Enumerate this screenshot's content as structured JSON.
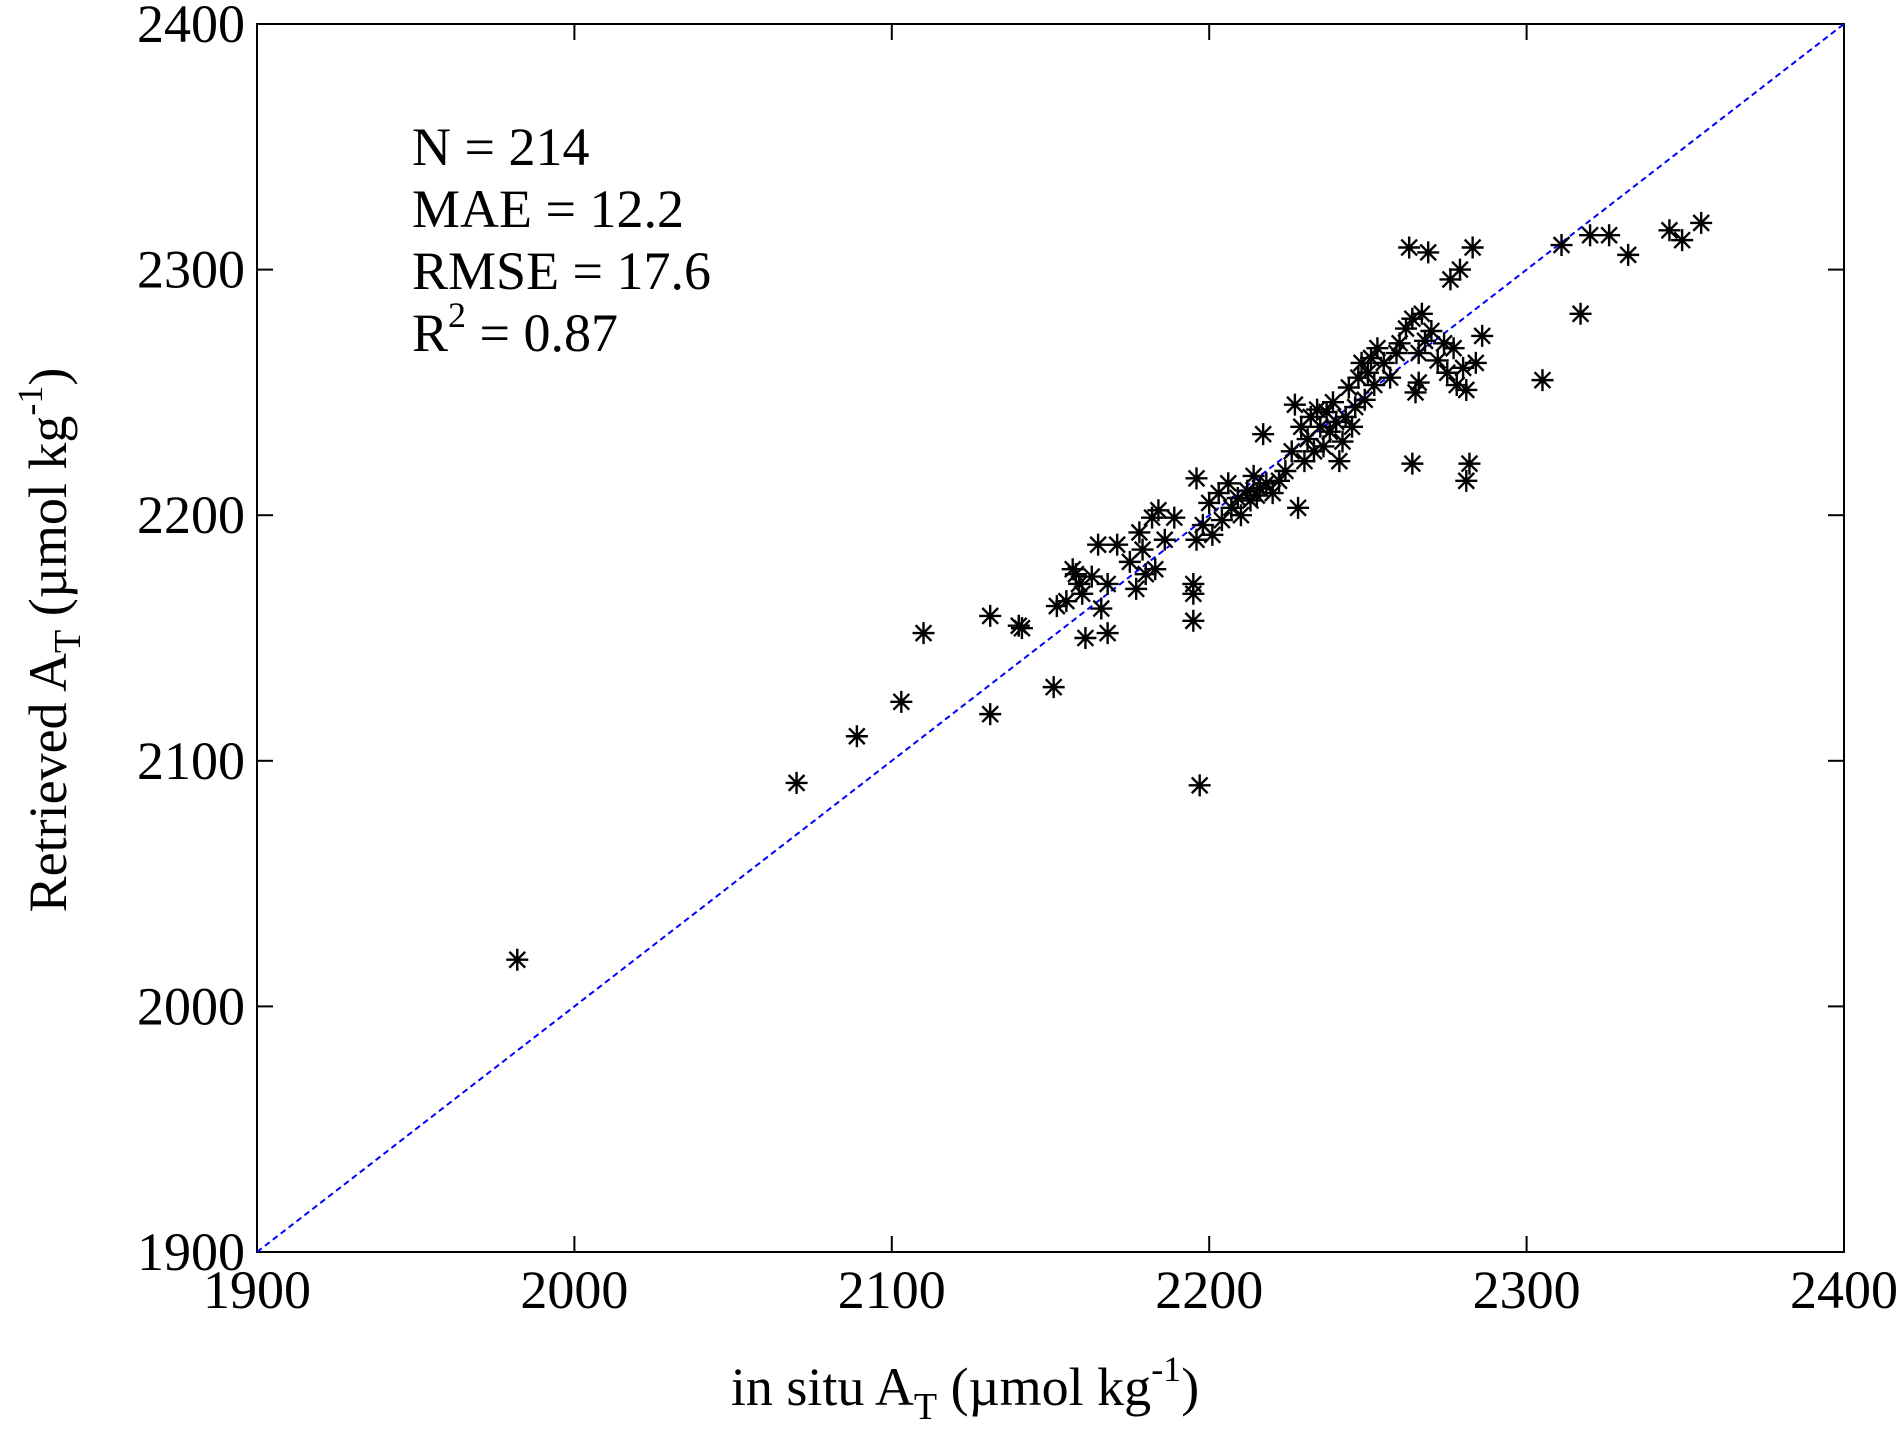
{
  "chart_data": {
    "type": "scatter",
    "title": "",
    "xlabel": {
      "main": "in situ A",
      "sub": "T",
      "unit_pre": " (µmol kg",
      "unit_sup": "-1",
      "unit_post": ")"
    },
    "ylabel": {
      "main": "Retrieved A",
      "sub": "T",
      "unit_pre": " (µmol kg",
      "unit_sup": "-1",
      "unit_post": ")"
    },
    "xlim": [
      1900,
      2400
    ],
    "ylim": [
      1900,
      2400
    ],
    "xticks": [
      1900,
      2000,
      2100,
      2200,
      2300,
      2400
    ],
    "yticks": [
      1900,
      2000,
      2100,
      2200,
      2300,
      2400
    ],
    "grid": false,
    "marker": "asterisk",
    "marker_color": "#000000",
    "reference_line": {
      "type": "1:1",
      "style": "dashed",
      "color": "#0000ff",
      "from": [
        1900,
        1900
      ],
      "to": [
        2400,
        2400
      ]
    },
    "stats": {
      "n_line": "N = 214",
      "mae_line": "MAE = 12.2",
      "rmse_line": "RMSE = 17.6",
      "r2_prefix": "R",
      "r2_sup": "2",
      "r2_suffix": " = 0.87"
    },
    "points": [
      [
        1982,
        2019
      ],
      [
        2070,
        2091
      ],
      [
        2089,
        2110
      ],
      [
        2103,
        2124
      ],
      [
        2110,
        2152
      ],
      [
        2131,
        2119
      ],
      [
        2131,
        2159
      ],
      [
        2140,
        2155
      ],
      [
        2141,
        2154
      ],
      [
        2151,
        2130
      ],
      [
        2152,
        2163
      ],
      [
        2155,
        2165
      ],
      [
        2157,
        2178
      ],
      [
        2158,
        2176
      ],
      [
        2159,
        2172
      ],
      [
        2160,
        2168
      ],
      [
        2161,
        2150
      ],
      [
        2163,
        2175
      ],
      [
        2165,
        2188
      ],
      [
        2166,
        2162
      ],
      [
        2168,
        2152
      ],
      [
        2168,
        2172
      ],
      [
        2171,
        2188
      ],
      [
        2175,
        2181
      ],
      [
        2177,
        2170
      ],
      [
        2178,
        2193
      ],
      [
        2179,
        2186
      ],
      [
        2180,
        2176
      ],
      [
        2182,
        2199
      ],
      [
        2183,
        2178
      ],
      [
        2184,
        2202
      ],
      [
        2186,
        2190
      ],
      [
        2189,
        2199
      ],
      [
        2195,
        2157
      ],
      [
        2195,
        2172
      ],
      [
        2195,
        2168
      ],
      [
        2196,
        2215
      ],
      [
        2196,
        2190
      ],
      [
        2197,
        2090
      ],
      [
        2198,
        2196
      ],
      [
        2200,
        2205
      ],
      [
        2201,
        2192
      ],
      [
        2203,
        2209
      ],
      [
        2204,
        2198
      ],
      [
        2206,
        2213
      ],
      [
        2207,
        2203
      ],
      [
        2209,
        2207
      ],
      [
        2210,
        2200
      ],
      [
        2212,
        2210
      ],
      [
        2213,
        2206
      ],
      [
        2214,
        2216
      ],
      [
        2215,
        2208
      ],
      [
        2216,
        2211
      ],
      [
        2217,
        2233
      ],
      [
        2218,
        2213
      ],
      [
        2220,
        2209
      ],
      [
        2222,
        2214
      ],
      [
        2224,
        2218
      ],
      [
        2226,
        2226
      ],
      [
        2227,
        2245
      ],
      [
        2228,
        2203
      ],
      [
        2229,
        2236
      ],
      [
        2230,
        2222
      ],
      [
        2231,
        2231
      ],
      [
        2232,
        2240
      ],
      [
        2233,
        2226
      ],
      [
        2234,
        2243
      ],
      [
        2235,
        2236
      ],
      [
        2236,
        2228
      ],
      [
        2237,
        2242
      ],
      [
        2238,
        2234
      ],
      [
        2239,
        2246
      ],
      [
        2240,
        2238
      ],
      [
        2241,
        2222
      ],
      [
        2242,
        2230
      ],
      [
        2243,
        2240
      ],
      [
        2244,
        2252
      ],
      [
        2245,
        2236
      ],
      [
        2246,
        2244
      ],
      [
        2247,
        2256
      ],
      [
        2248,
        2262
      ],
      [
        2249,
        2247
      ],
      [
        2250,
        2258
      ],
      [
        2251,
        2264
      ],
      [
        2252,
        2253
      ],
      [
        2253,
        2268
      ],
      [
        2255,
        2262
      ],
      [
        2257,
        2256
      ],
      [
        2259,
        2266
      ],
      [
        2260,
        2270
      ],
      [
        2262,
        2276
      ],
      [
        2263,
        2309
      ],
      [
        2264,
        2280
      ],
      [
        2264,
        2221
      ],
      [
        2265,
        2250
      ],
      [
        2266,
        2266
      ],
      [
        2266,
        2254
      ],
      [
        2267,
        2282
      ],
      [
        2268,
        2271
      ],
      [
        2269,
        2307
      ],
      [
        2270,
        2275
      ],
      [
        2272,
        2263
      ],
      [
        2274,
        2270
      ],
      [
        2275,
        2258
      ],
      [
        2276,
        2296
      ],
      [
        2277,
        2268
      ],
      [
        2278,
        2253
      ],
      [
        2279,
        2300
      ],
      [
        2280,
        2260
      ],
      [
        2281,
        2251
      ],
      [
        2281,
        2214
      ],
      [
        2282,
        2221
      ],
      [
        2283,
        2309
      ],
      [
        2284,
        2262
      ],
      [
        2286,
        2273
      ],
      [
        2305,
        2255
      ],
      [
        2311,
        2310
      ],
      [
        2317,
        2282
      ],
      [
        2320,
        2314
      ],
      [
        2326,
        2314
      ],
      [
        2332,
        2306
      ],
      [
        2345,
        2316
      ],
      [
        2349,
        2312
      ],
      [
        2355,
        2319
      ]
    ]
  }
}
